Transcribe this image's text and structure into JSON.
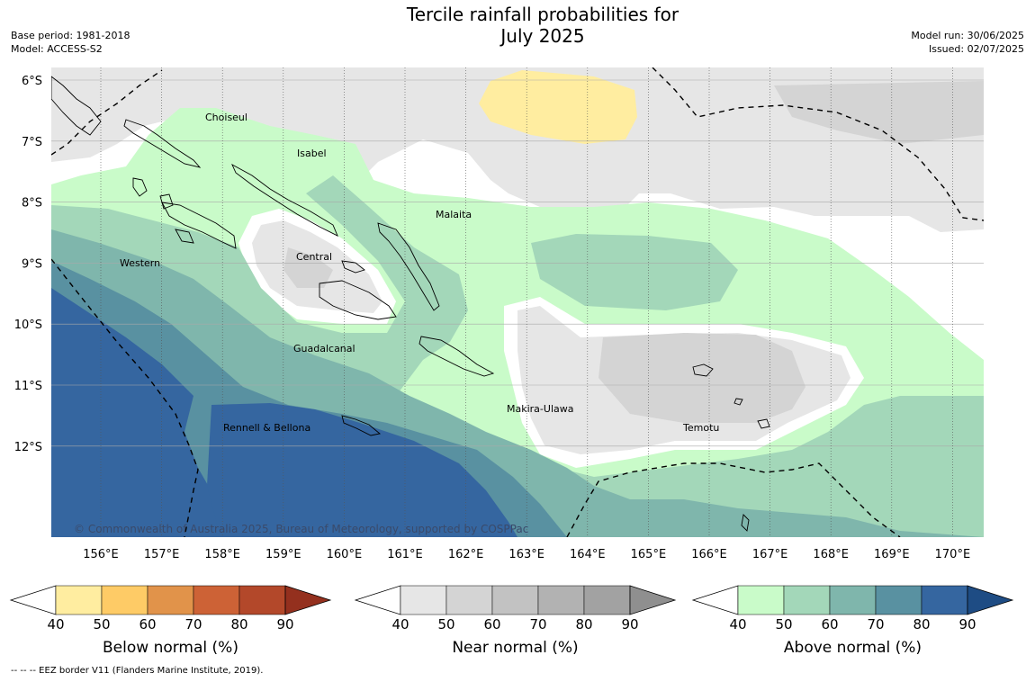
{
  "title_line1": "Tercile rainfall probabilities for",
  "title_line2": "July 2025",
  "meta_left": [
    "Base period: 1981-2018",
    "Model: ACCESS-S2"
  ],
  "meta_right": [
    "Model run: 30/06/2025",
    "Issued: 02/07/2025"
  ],
  "map": {
    "lat_labels": [
      "6°S",
      "7°S",
      "8°S",
      "9°S",
      "10°S",
      "11°S",
      "12°S"
    ],
    "lon_labels": [
      "156°E",
      "157°E",
      "158°E",
      "159°E",
      "160°E",
      "161°E",
      "162°E",
      "163°E",
      "164°E",
      "165°E",
      "166°E",
      "167°E",
      "168°E",
      "169°E",
      "170°E"
    ],
    "places": [
      "Choiseul",
      "Isabel",
      "Malaita",
      "Central",
      "Western",
      "Guadalcanal",
      "Makira-Ulawa",
      "Rennell & Bellona",
      "Temotu"
    ],
    "copyright": "© Commonwealth of Australia 2025, Bureau of Meteorology, supported by COSPPac"
  },
  "legends": [
    {
      "label": "Below normal (%)",
      "ticks": [
        "40",
        "50",
        "60",
        "70",
        "80",
        "90"
      ],
      "colors": [
        "#ffffff",
        "#ffeda0",
        "#fecb66",
        "#e1934a",
        "#cd6236",
        "#b3482a",
        "#94301e"
      ]
    },
    {
      "label": "Near normal (%)",
      "ticks": [
        "40",
        "50",
        "60",
        "70",
        "80",
        "90"
      ],
      "colors": [
        "#ffffff",
        "#e6e6e6",
        "#d4d4d4",
        "#c2c2c2",
        "#b2b2b2",
        "#a2a2a2",
        "#8f8f8f"
      ]
    },
    {
      "label": "Above normal (%)",
      "ticks": [
        "40",
        "50",
        "60",
        "70",
        "80",
        "90"
      ],
      "colors": [
        "#ffffff",
        "#c9fbc9",
        "#a3d7b9",
        "#7fb6ac",
        "#5991a1",
        "#3566a0",
        "#1e4c84"
      ]
    }
  ],
  "credit": "--  --  -- EEZ border V11 (Flanders Marine Institute, 2019)."
}
